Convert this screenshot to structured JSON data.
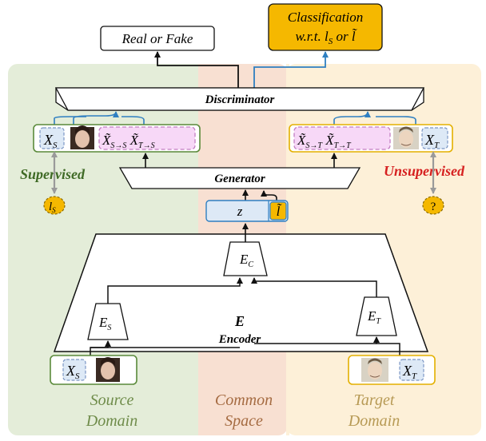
{
  "colors": {
    "source_bg": "#e4edd9",
    "common_bg": "#f8e0d2",
    "target_bg": "#fdf0d8",
    "source_text": "#6f8c4a",
    "common_text": "#a56b42",
    "target_text": "#b79a55",
    "supervised": "#3f6a26",
    "unsupervised": "#d62020",
    "gold": "#f5b800",
    "blue": "#2f7fc1",
    "latent_fill": "#dde9f6",
    "pink_fill": "#f7d8f7",
    "pink_stroke": "#c27ec2"
  },
  "outputs": {
    "real_or_fake": "Real or Fake",
    "classification_line1": "Classification",
    "classification_line2": "w.r.t. l",
    "classification_sub": "S",
    "classification_or": "or",
    "classification_ltilde": "l̃"
  },
  "modules": {
    "discriminator": "Discriminator",
    "generator": "Generator",
    "encoder_symbol": "E",
    "encoder_label": "Encoder",
    "ec": "E",
    "ec_sub": "C",
    "es": "E",
    "es_sub": "S",
    "et": "E",
    "et_sub": "T"
  },
  "latent": {
    "z": "z",
    "ltilde": "l̃"
  },
  "source_row": {
    "xs": "X",
    "xs_sub": "S",
    "recon1": "X̃",
    "recon1_sub": "S→S",
    "recon2": "X̃",
    "recon2_sub": "T→S"
  },
  "target_row": {
    "recon1": "X̃",
    "recon1_sub": "S→T",
    "recon2": "X̃",
    "recon2_sub": "T→T",
    "xt": "X",
    "xt_sub": "T"
  },
  "labels": {
    "supervised": "Supervised",
    "unsupervised": "Unsupervised",
    "ls": "l",
    "ls_sub": "S",
    "unknown": "?"
  },
  "bottom_inputs": {
    "xs": "X",
    "xs_sub": "S",
    "xt": "X",
    "xt_sub": "T"
  },
  "regions": {
    "source_l1": "Source",
    "source_l2": "Domain",
    "common_l1": "Common",
    "common_l2": "Space",
    "target_l1": "Target",
    "target_l2": "Domain"
  }
}
